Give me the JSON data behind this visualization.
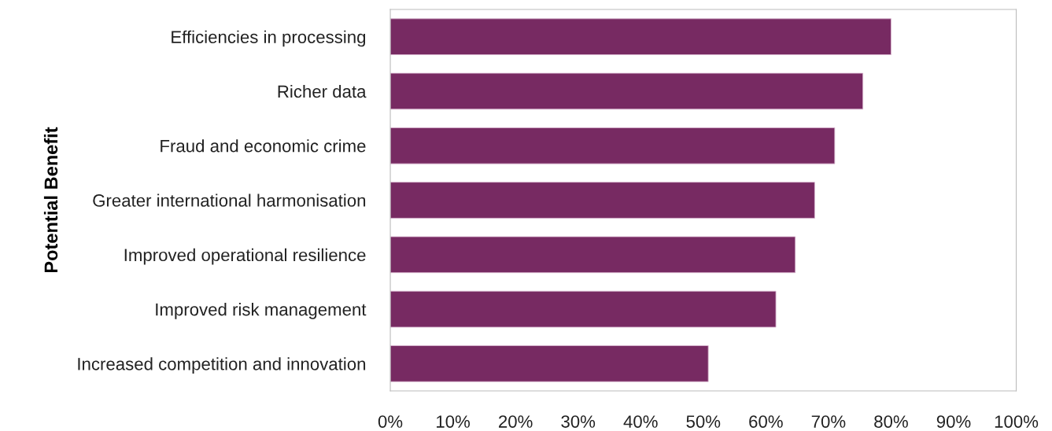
{
  "chart_data": {
    "type": "bar",
    "orientation": "horizontal",
    "ylabel": "Potential Benefit",
    "categories": [
      "Efficiencies in processing",
      "Richer data",
      "Fraud and economic crime",
      "Greater international harmonisation",
      "Improved operational resilience",
      "Improved risk management",
      "Increased competition and innovation"
    ],
    "values": [
      80,
      75.5,
      71,
      67.8,
      64.7,
      61.6,
      50.8
    ],
    "color": "#772a62",
    "xlim": [
      0,
      100
    ],
    "xticks": [
      {
        "value": 0,
        "label": "0%"
      },
      {
        "value": 10,
        "label": "10%"
      },
      {
        "value": 20,
        "label": "20%"
      },
      {
        "value": 30,
        "label": "30%"
      },
      {
        "value": 40,
        "label": "40%"
      },
      {
        "value": 50,
        "label": "50%"
      },
      {
        "value": 60,
        "label": "60%"
      },
      {
        "value": 70,
        "label": "70%"
      },
      {
        "value": 80,
        "label": "80%"
      },
      {
        "value": 90,
        "label": "90%"
      },
      {
        "value": 100,
        "label": "100%"
      }
    ],
    "grid": false,
    "legend": false
  }
}
